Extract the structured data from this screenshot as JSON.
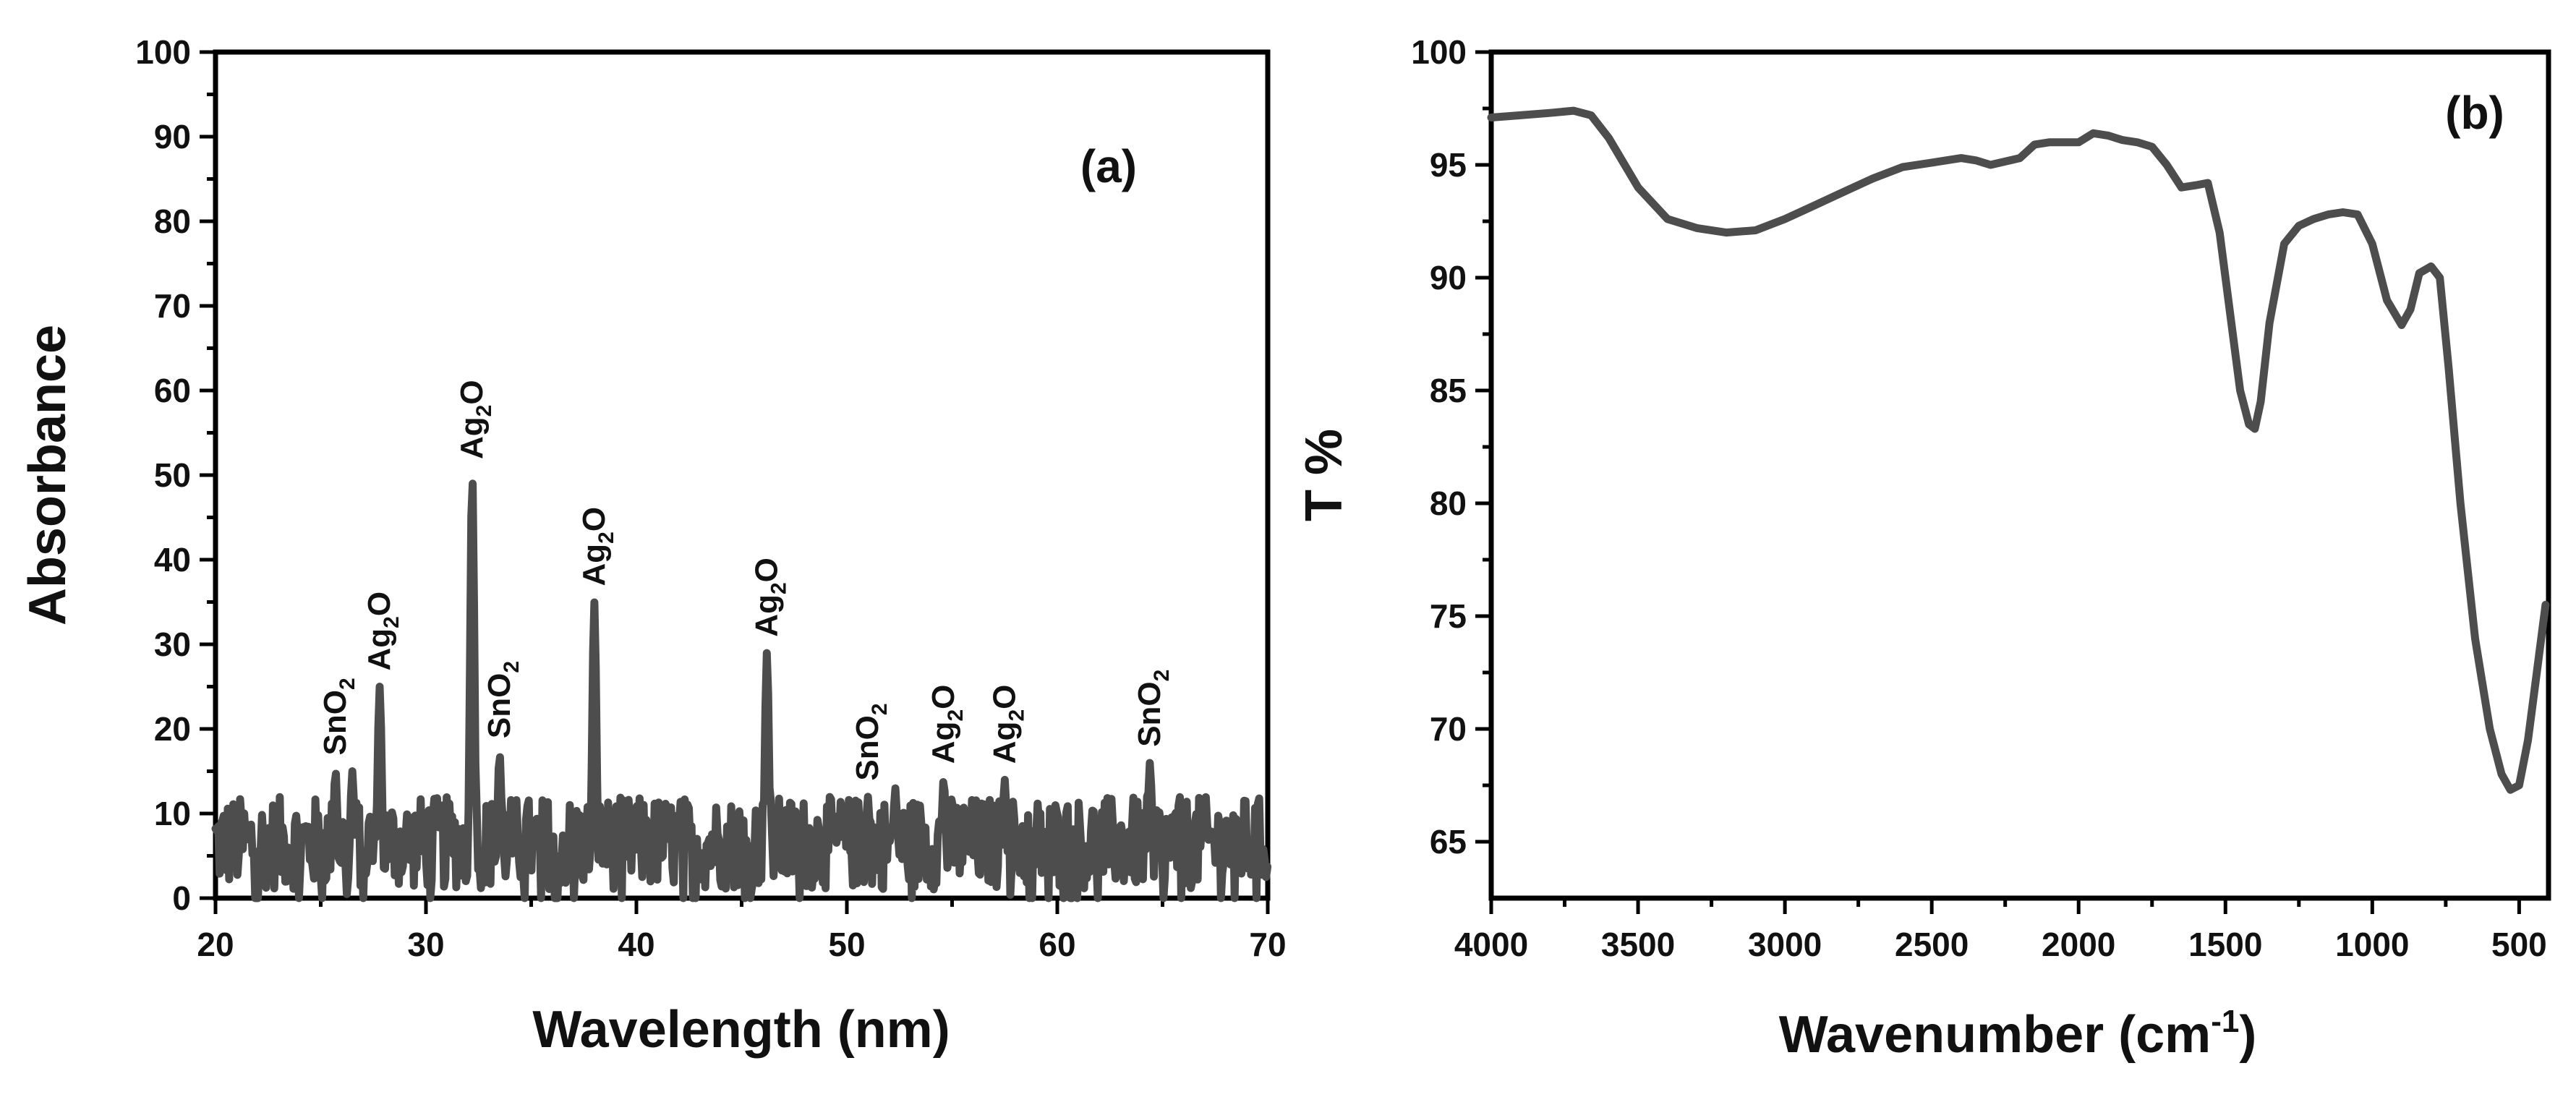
{
  "chart_data": [
    {
      "panel": "(a)",
      "type": "line",
      "xlabel": "Wavelength (nm)",
      "ylabel": "Absorbance",
      "xlim": [
        20,
        70
      ],
      "ylim": [
        0,
        100
      ],
      "xticks": [
        20,
        30,
        40,
        50,
        60,
        70
      ],
      "yticks": [
        0,
        10,
        20,
        30,
        40,
        50,
        60,
        70,
        80,
        90,
        100
      ],
      "color": "#4d4d4d",
      "noise_baseline": [
        1,
        12
      ],
      "peaks": [
        {
          "x": 25.7,
          "y": 15,
          "label": "SnO",
          "sub": "2"
        },
        {
          "x": 26.5,
          "y": 15,
          "label": "",
          "sub": ""
        },
        {
          "x": 27.8,
          "y": 25,
          "label": "Ag",
          "sub": "2",
          "suffix": "O"
        },
        {
          "x": 32.2,
          "y": 50,
          "label": "Ag",
          "sub": "2",
          "suffix": "O"
        },
        {
          "x": 33.5,
          "y": 17,
          "label": "SnO",
          "sub": "2"
        },
        {
          "x": 38.0,
          "y": 35,
          "label": "Ag",
          "sub": "2",
          "suffix": "O"
        },
        {
          "x": 46.2,
          "y": 29,
          "label": "Ag",
          "sub": "2",
          "suffix": "O"
        },
        {
          "x": 51.0,
          "y": 12,
          "label": "SnO",
          "sub": "2"
        },
        {
          "x": 52.3,
          "y": 13,
          "label": "",
          "sub": ""
        },
        {
          "x": 54.6,
          "y": 14,
          "label": "Ag",
          "sub": "2",
          "suffix": "O"
        },
        {
          "x": 57.5,
          "y": 14,
          "label": "Ag",
          "sub": "2",
          "suffix": "O"
        },
        {
          "x": 64.4,
          "y": 16,
          "label": "SnO",
          "sub": "2"
        }
      ]
    },
    {
      "panel": "(b)",
      "type": "line",
      "xlabel": "Wavenumber (cm",
      "xlabel_sup": "-1",
      "xlabel_close": ")",
      "ylabel": "T %",
      "xlim": [
        4000,
        400
      ],
      "ylim": [
        62.5,
        100
      ],
      "xticks": [
        4000,
        3500,
        3000,
        2500,
        2000,
        1500,
        1000,
        500
      ],
      "yticks": [
        65,
        70,
        75,
        80,
        85,
        90,
        95,
        100
      ],
      "color": "#4d4d4d",
      "x": [
        4000,
        3900,
        3800,
        3720,
        3660,
        3600,
        3500,
        3400,
        3300,
        3200,
        3100,
        3000,
        2900,
        2800,
        2700,
        2600,
        2500,
        2400,
        2350,
        2300,
        2200,
        2150,
        2100,
        2000,
        1950,
        1900,
        1850,
        1800,
        1750,
        1700,
        1650,
        1600,
        1560,
        1520,
        1480,
        1450,
        1420,
        1400,
        1380,
        1350,
        1300,
        1250,
        1200,
        1150,
        1100,
        1050,
        1000,
        950,
        900,
        870,
        840,
        800,
        770,
        740,
        700,
        650,
        600,
        560,
        530,
        500,
        470,
        440,
        410
      ],
      "y": [
        97.1,
        97.2,
        97.3,
        97.4,
        97.2,
        96.2,
        94.0,
        92.6,
        92.2,
        92.0,
        92.1,
        92.6,
        93.2,
        93.8,
        94.4,
        94.9,
        95.1,
        95.3,
        95.2,
        95.0,
        95.3,
        95.9,
        96.0,
        96.0,
        96.4,
        96.3,
        96.1,
        96.0,
        95.8,
        95.0,
        94.0,
        94.1,
        94.2,
        92.0,
        88.0,
        85.0,
        83.5,
        83.3,
        84.5,
        88.0,
        91.5,
        92.3,
        92.6,
        92.8,
        92.9,
        92.8,
        91.5,
        89.0,
        87.9,
        88.6,
        90.2,
        90.5,
        90.0,
        86.0,
        80.0,
        74.0,
        70.0,
        68.0,
        67.3,
        67.5,
        69.5,
        72.5,
        75.5
      ]
    }
  ]
}
